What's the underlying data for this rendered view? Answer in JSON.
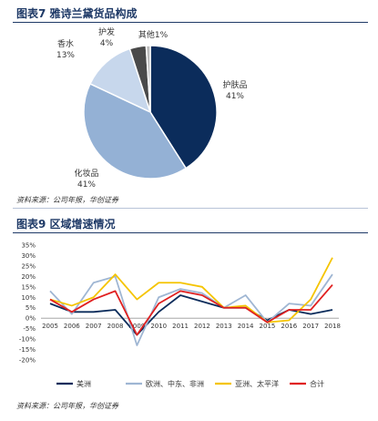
{
  "figures": [
    {
      "title": "图表7 雅诗兰黛货品构成",
      "source": "资料来源：公司年报，华创证券"
    },
    {
      "title": "图表9 区域增速情况",
      "source": "资料来源：公司年报，华创证券"
    }
  ],
  "chart_data": [
    {
      "type": "pie",
      "title": "图表7 雅诗兰黛货品构成",
      "slices": [
        {
          "name": "护肤品",
          "value": 41,
          "label": "41%",
          "color": "#0b2c5b"
        },
        {
          "name": "化妆品",
          "value": 41,
          "label": "41%",
          "color": "#94b1d5"
        },
        {
          "name": "香水",
          "value": 13,
          "label": "13%",
          "color": "#c7d7ec"
        },
        {
          "name": "护发",
          "value": 4,
          "label": "4%",
          "color": "#4a4a4a"
        },
        {
          "name": "其他",
          "value": 1,
          "label": "1%",
          "color": "#bdbdbd"
        }
      ]
    },
    {
      "type": "line",
      "title": "图表9 区域增速情况",
      "x": [
        "2005",
        "2006",
        "2007",
        "2008",
        "2009",
        "2010",
        "2011",
        "2012",
        "2013",
        "2014",
        "2015",
        "2016",
        "2017",
        "2018"
      ],
      "ylim": [
        -20,
        35
      ],
      "yticks": [
        "35%",
        "30%",
        "25%",
        "20%",
        "15%",
        "10%",
        "5%",
        "0%",
        "-5%",
        "-10%",
        "-15%",
        "-20%"
      ],
      "ytick_values": [
        35,
        30,
        25,
        20,
        15,
        10,
        5,
        0,
        -5,
        -10,
        -15,
        -20
      ],
      "legend_position": "bottom",
      "series": [
        {
          "name": "美洲",
          "color": "#0b2c5b",
          "values": [
            7,
            3,
            3,
            4,
            -8,
            3,
            11,
            8,
            5,
            5,
            -1,
            4,
            2,
            4
          ]
        },
        {
          "name": "欧洲、中东、非洲",
          "color": "#9fb6d3",
          "values": [
            13,
            2,
            17,
            20,
            -13,
            10,
            14,
            12,
            5,
            11,
            -2,
            7,
            6,
            21
          ]
        },
        {
          "name": "亚洲、太平洋",
          "color": "#f5c400",
          "values": [
            9,
            6,
            10,
            21,
            9,
            17,
            17,
            15,
            5,
            6,
            -2,
            -1,
            9,
            29
          ]
        },
        {
          "name": "合计",
          "color": "#e02020",
          "values": [
            9,
            3,
            9,
            13,
            -8,
            7,
            13,
            11,
            5,
            5,
            -2,
            4,
            4,
            16
          ]
        }
      ]
    }
  ]
}
